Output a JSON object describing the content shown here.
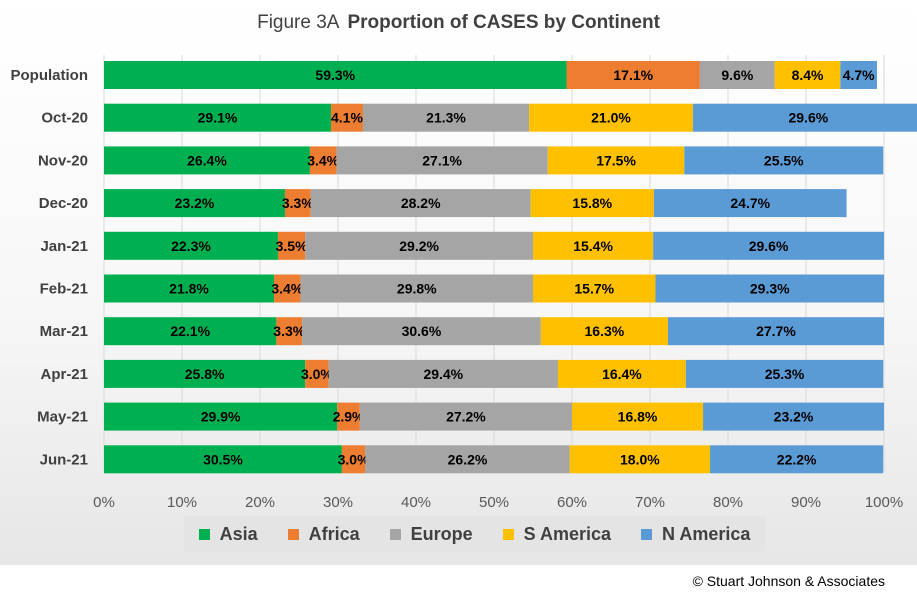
{
  "title": {
    "prefix": "Figure  3A",
    "main": "Proportion of CASES by Continent"
  },
  "footer": "© Stuart Johnson & Associates",
  "chart_data": {
    "type": "bar",
    "orientation": "horizontal",
    "stacked": "percent",
    "categories": [
      "Population",
      "Oct-20",
      "Nov-20",
      "Dec-20",
      "Jan-21",
      "Feb-21",
      "Mar-21",
      "Apr-21",
      "May-21",
      "Jun-21"
    ],
    "series": [
      {
        "name": "Asia",
        "color": "#00b050",
        "values": [
          59.3,
          29.1,
          26.4,
          23.2,
          22.3,
          21.8,
          22.1,
          25.8,
          29.9,
          30.5
        ]
      },
      {
        "name": "Africa",
        "color": "#ed7d31",
        "values": [
          17.1,
          4.1,
          3.4,
          3.3,
          3.5,
          3.4,
          3.3,
          3.0,
          2.9,
          3.0
        ]
      },
      {
        "name": "Europe",
        "color": "#a5a5a5",
        "values": [
          9.6,
          21.3,
          27.1,
          28.2,
          29.2,
          29.8,
          30.6,
          29.4,
          27.2,
          26.2
        ]
      },
      {
        "name": "S America",
        "color": "#ffc000",
        "values": [
          8.4,
          21.0,
          17.5,
          15.8,
          15.4,
          15.7,
          16.3,
          16.4,
          16.8,
          18.0
        ]
      },
      {
        "name": "N America",
        "color": "#5b9bd5",
        "values": [
          4.7,
          29.6,
          25.5,
          24.7,
          29.6,
          29.3,
          27.7,
          25.3,
          23.2,
          22.2
        ]
      }
    ],
    "xlim": [
      0,
      100
    ],
    "x_ticks": [
      "0%",
      "10%",
      "20%",
      "30%",
      "40%",
      "50%",
      "60%",
      "70%",
      "80%",
      "90%",
      "100%"
    ],
    "grid": "vertical",
    "legend_position": "bottom",
    "data_labels": true
  }
}
